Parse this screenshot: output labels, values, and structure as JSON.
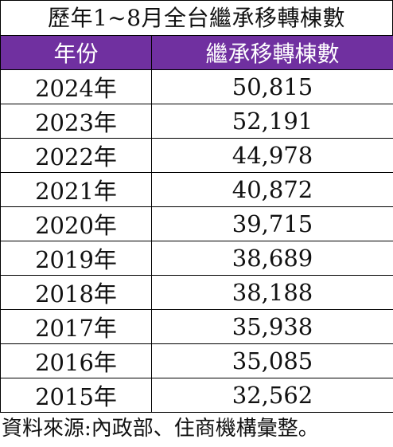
{
  "chart_data": {
    "type": "table",
    "title": "歷年1~8月全台繼承移轉棟數",
    "columns": [
      "年份",
      "繼承移轉棟數"
    ],
    "rows": [
      {
        "year": "2024年",
        "value": "50,815"
      },
      {
        "year": "2023年",
        "value": "52,191"
      },
      {
        "year": "2022年",
        "value": "44,978"
      },
      {
        "year": "2021年",
        "value": "40,872"
      },
      {
        "year": "2020年",
        "value": "39,715"
      },
      {
        "year": "2019年",
        "value": "38,689"
      },
      {
        "year": "2018年",
        "value": "38,188"
      },
      {
        "year": "2017年",
        "value": "35,938"
      },
      {
        "year": "2016年",
        "value": "35,085"
      },
      {
        "year": "2015年",
        "value": "32,562"
      }
    ],
    "source": "資料來源:內政部、住商機構彙整。"
  },
  "colors": {
    "header_background": "#7030a0",
    "header_text": "#ffffff"
  }
}
